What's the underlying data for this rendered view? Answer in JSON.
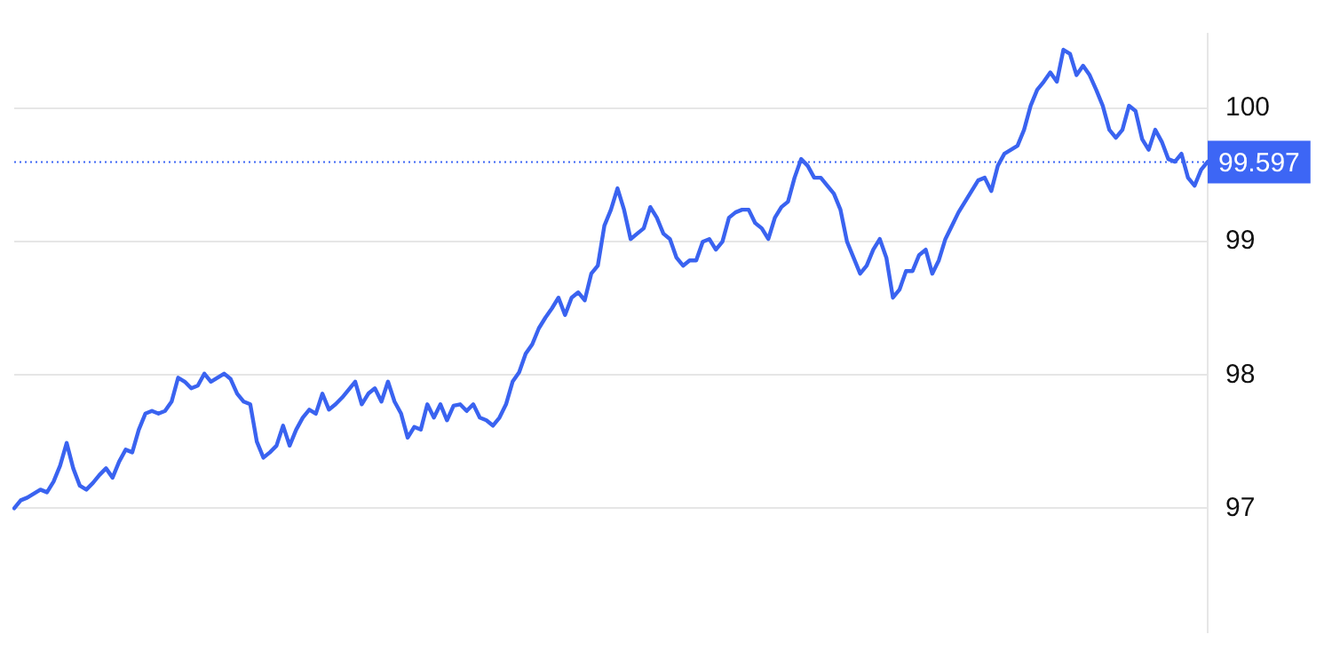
{
  "chart_data": {
    "type": "line",
    "color": "#3a63f0",
    "grid": "y",
    "marker": "none",
    "line_style": "solid",
    "categories": [
      null,
      null,
      null,
      null,
      null,
      null,
      null,
      null,
      null,
      null,
      null,
      null,
      null,
      null,
      null,
      null,
      null,
      null,
      null,
      null,
      null,
      null,
      null,
      null,
      null,
      null,
      null,
      null,
      null,
      null,
      null,
      null,
      null,
      null,
      null,
      null,
      null,
      null,
      null,
      null,
      null,
      null,
      null,
      null,
      null,
      null,
      null,
      null,
      null,
      null,
      null,
      null,
      null,
      null,
      null,
      null,
      null,
      null,
      null,
      null,
      null,
      null,
      null,
      null,
      null,
      null,
      null,
      null,
      null,
      null,
      null,
      null,
      null,
      null,
      null,
      null,
      null,
      null,
      null,
      null,
      null,
      null,
      null,
      null,
      null,
      null,
      null,
      null,
      null,
      null,
      null,
      null,
      null,
      null,
      null,
      null,
      null,
      null,
      null,
      null,
      null,
      null,
      null,
      null,
      null,
      null,
      null,
      null,
      null,
      null,
      null,
      null,
      null,
      null,
      null,
      null,
      null,
      null,
      null,
      null,
      null,
      null,
      null,
      null,
      null,
      null,
      null,
      null,
      null,
      null,
      null,
      null,
      null,
      null,
      null,
      null,
      null,
      null,
      null,
      null,
      null,
      null,
      null,
      null,
      null,
      null,
      null,
      null,
      null,
      null,
      null,
      null,
      null,
      null,
      null,
      null,
      null,
      null,
      null,
      null,
      null,
      null,
      null,
      null,
      null,
      null,
      null,
      null,
      null,
      null,
      null,
      null,
      null,
      null,
      null,
      null,
      null,
      null,
      null,
      null,
      null,
      null,
      null
    ],
    "values": [
      97.0,
      97.06,
      97.08,
      97.11,
      97.14,
      97.12,
      97.2,
      97.32,
      97.49,
      97.3,
      97.17,
      97.14,
      97.19,
      97.25,
      97.3,
      97.23,
      97.35,
      97.44,
      97.42,
      97.59,
      97.71,
      97.73,
      97.71,
      97.73,
      97.8,
      97.98,
      97.95,
      97.9,
      97.92,
      98.01,
      97.95,
      97.98,
      98.01,
      97.97,
      97.86,
      97.8,
      97.78,
      97.5,
      97.38,
      97.42,
      97.47,
      97.62,
      97.47,
      97.59,
      97.68,
      97.74,
      97.71,
      97.86,
      97.74,
      97.78,
      97.83,
      97.89,
      97.95,
      97.78,
      97.86,
      97.9,
      97.8,
      97.95,
      97.8,
      97.71,
      97.53,
      97.61,
      97.59,
      97.78,
      97.68,
      97.78,
      97.66,
      97.77,
      97.78,
      97.73,
      97.78,
      97.68,
      97.66,
      97.62,
      97.68,
      97.78,
      97.95,
      98.02,
      98.16,
      98.23,
      98.35,
      98.43,
      98.5,
      98.58,
      98.45,
      98.58,
      98.62,
      98.56,
      98.76,
      98.82,
      99.12,
      99.24,
      99.4,
      99.24,
      99.02,
      99.06,
      99.1,
      99.26,
      99.18,
      99.06,
      99.02,
      98.88,
      98.82,
      98.86,
      98.86,
      99.0,
      99.02,
      98.94,
      99.0,
      99.18,
      99.22,
      99.24,
      99.24,
      99.14,
      99.1,
      99.02,
      99.18,
      99.26,
      99.3,
      99.48,
      99.62,
      99.57,
      99.48,
      99.48,
      99.42,
      99.36,
      99.24,
      99.0,
      98.88,
      98.76,
      98.82,
      98.94,
      99.02,
      98.88,
      98.58,
      98.64,
      98.78,
      98.78,
      98.9,
      98.94,
      98.76,
      98.86,
      99.02,
      99.12,
      99.22,
      99.3,
      99.38,
      99.46,
      99.48,
      99.38,
      99.57,
      99.66,
      99.69,
      99.72,
      99.84,
      100.02,
      100.14,
      100.2,
      100.27,
      100.2,
      100.44,
      100.41,
      100.25,
      100.32,
      100.25,
      100.14,
      100.02,
      99.84,
      99.78,
      99.84,
      100.02,
      99.98,
      99.77,
      99.69,
      99.84,
      99.75,
      99.62,
      99.6,
      99.66,
      99.48,
      99.42,
      99.54,
      99.6
    ],
    "ylim": [
      96.07,
      100.56
    ],
    "yticks": [
      97,
      98,
      99,
      100
    ],
    "ref_lines": [
      {
        "axis": "y",
        "value": 99.597,
        "label": "99.597",
        "color": "#3d66f5",
        "line_style": "dotted"
      }
    ]
  }
}
